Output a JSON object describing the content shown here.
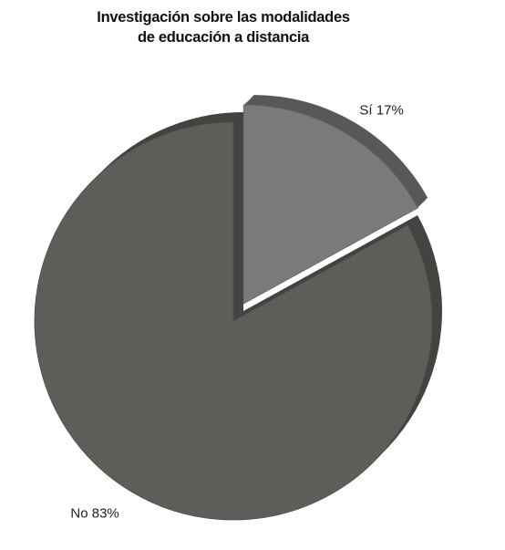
{
  "chart_data": {
    "type": "pie",
    "title": [
      "Investigación sobre las modalidades",
      "de educación a distancia"
    ],
    "slices": [
      {
        "label": "Sí 17%",
        "name": "Sí",
        "value": 17,
        "color": "#7a7a78",
        "exploded": true
      },
      {
        "label": "No 83%",
        "name": "No",
        "value": 83,
        "color": "#5d5e5a",
        "exploded": false
      }
    ],
    "style": "3d-exploded"
  }
}
